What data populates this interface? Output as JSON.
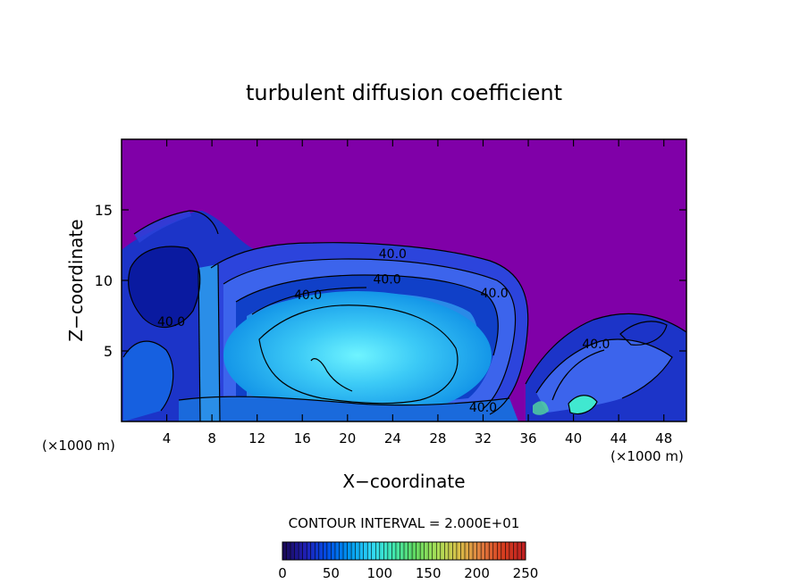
{
  "chart_data": {
    "type": "heatmap",
    "title": "turbulent diffusion coefficient",
    "xlabel": "X−coordinate",
    "ylabel": "Z−coordinate",
    "x_unit": "(×1000 m)",
    "z_unit": "(×1000 m)",
    "xlim": [
      0,
      50
    ],
    "ylim": [
      0,
      20
    ],
    "x_ticks": [
      4,
      8,
      12,
      16,
      20,
      24,
      28,
      32,
      36,
      40,
      44,
      48
    ],
    "y_ticks": [
      5,
      10,
      15
    ],
    "contour_labels": [
      {
        "text": "40.0",
        "x": 24.0,
        "z": 11.9
      },
      {
        "text": "40.0",
        "x": 23.5,
        "z": 10.1
      },
      {
        "text": "40.0",
        "x": 16.5,
        "z": 9.0
      },
      {
        "text": "40.0",
        "x": 33.0,
        "z": 9.1
      },
      {
        "text": "40.0",
        "x": 4.4,
        "z": 7.1
      },
      {
        "text": "40.0",
        "x": 42.0,
        "z": 5.5
      },
      {
        "text": "40.0",
        "x": 32.0,
        "z": 1.0
      }
    ],
    "contour_interval_text": "CONTOUR INTERVAL = 2.000E+01",
    "colorbar": {
      "range": [
        0,
        250
      ],
      "ticks": [
        0,
        50,
        100,
        150,
        200,
        250
      ],
      "colors": [
        "#1a0a5a",
        "#2020b8",
        "#0050e8",
        "#0098f0",
        "#30d8f8",
        "#40e8b0",
        "#60d860",
        "#a8e058",
        "#d8c048",
        "#e08040",
        "#d84020",
        "#c02020"
      ]
    },
    "background_color": "#8000a8"
  }
}
